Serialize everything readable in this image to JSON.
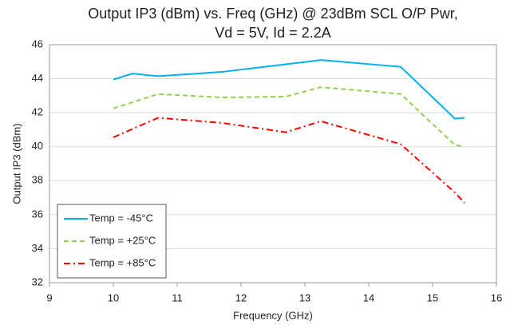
{
  "chart_data": {
    "type": "line",
    "title": [
      "Output IP3 (dBm) vs. Freq (GHz) @ 23dBm SCL O/P Pwr,",
      "Vd = 5V, Id = 2.2A"
    ],
    "xlabel": "Frequency (GHz)",
    "ylabel": "Output IP3 (dBm)",
    "xlim": [
      9,
      16
    ],
    "xticks": [
      9,
      10,
      11,
      12,
      13,
      14,
      15,
      16
    ],
    "ylim": [
      32,
      46
    ],
    "yticks": [
      32,
      34,
      36,
      38,
      40,
      42,
      44,
      46
    ],
    "grid": true,
    "legend": "lower left",
    "series": [
      {
        "name": "Temp = -45°C",
        "color": "#00b0f0",
        "dash": "solid",
        "x": [
          10,
          10.3,
          10.7,
          11.7,
          12.7,
          13.25,
          14.5,
          15.35,
          15.5
        ],
        "values": [
          43.95,
          44.3,
          44.15,
          44.4,
          44.85,
          45.1,
          44.7,
          41.65,
          41.7
        ]
      },
      {
        "name": "Temp = +25°C",
        "color": "#92d050",
        "dash": "dashed",
        "x": [
          10,
          10.7,
          11.7,
          12.7,
          13.25,
          14.5,
          15.35,
          15.5
        ],
        "values": [
          42.25,
          43.1,
          42.9,
          42.95,
          43.5,
          43.1,
          40.1,
          40.0
        ]
      },
      {
        "name": "Temp = +85°C",
        "color": "#ff0000",
        "dash": "dashdot",
        "x": [
          10,
          10.7,
          11.7,
          12.7,
          13.25,
          14.5,
          15.35,
          15.5
        ],
        "values": [
          40.55,
          41.7,
          41.4,
          40.85,
          41.5,
          40.15,
          37.3,
          36.7
        ]
      }
    ]
  }
}
